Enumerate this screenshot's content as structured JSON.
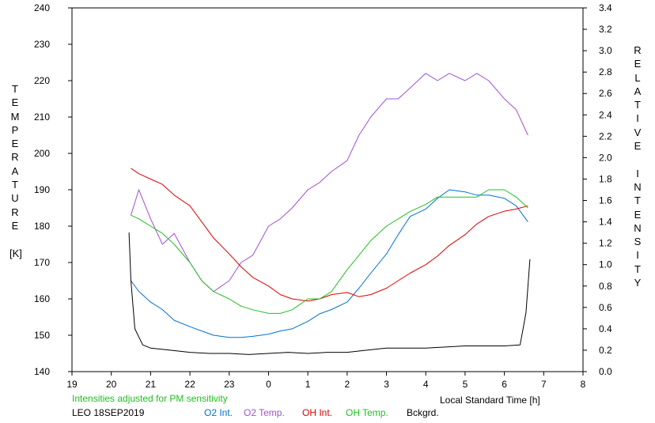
{
  "chart_data": {
    "type": "line",
    "title": "",
    "xlabel": "Local Standard Time [h]",
    "ylabel_left": [
      "T",
      "E",
      "M",
      "P",
      "E",
      "R",
      "A",
      "T",
      "U",
      "R",
      "E",
      "",
      "[K]"
    ],
    "ylabel_right": [
      "R",
      "E",
      "L",
      "A",
      "T",
      "I",
      "V",
      "E",
      "",
      "I",
      "N",
      "T",
      "E",
      "N",
      "S",
      "I",
      "T",
      "Y"
    ],
    "x_ticks": [
      "19",
      "20",
      "21",
      "22",
      "23",
      "0",
      "1",
      "2",
      "3",
      "4",
      "5",
      "6",
      "7",
      "8"
    ],
    "x_range_hours_after_19": [
      0,
      13
    ],
    "y_left_ticks": [
      "140",
      "150",
      "160",
      "170",
      "180",
      "190",
      "200",
      "210",
      "220",
      "230",
      "240"
    ],
    "y_left_range": [
      140,
      240
    ],
    "y_right_ticks": [
      "0.0",
      "0.2",
      "0.4",
      "0.6",
      "0.8",
      "1.0",
      "1.2",
      "1.4",
      "1.6",
      "1.8",
      "2.0",
      "2.2",
      "2.4",
      "2.6",
      "2.8",
      "3.0",
      "3.2",
      "3.4"
    ],
    "y_right_range": [
      0.0,
      3.4
    ],
    "note": "Intensities adjusted for PM sensitivity",
    "station": "LEO 18SEP2019",
    "series": [
      {
        "name": "O2 Int.",
        "axis": "right",
        "color": "#0070d0",
        "x": [
          20.5,
          20.7,
          21.0,
          21.3,
          21.6,
          22.0,
          22.3,
          22.6,
          23.0,
          23.3,
          23.6,
          24.0,
          24.3,
          24.6,
          25.0,
          25.3,
          25.6,
          26.0,
          26.3,
          26.6,
          27.0,
          27.3,
          27.6,
          28.0,
          28.3,
          28.6,
          29.0,
          29.3,
          29.6,
          30.0,
          30.3,
          30.6
        ],
        "y": [
          0.85,
          0.75,
          0.65,
          0.58,
          0.48,
          0.42,
          0.38,
          0.34,
          0.32,
          0.32,
          0.33,
          0.35,
          0.38,
          0.4,
          0.47,
          0.54,
          0.58,
          0.65,
          0.78,
          0.92,
          1.1,
          1.28,
          1.45,
          1.52,
          1.62,
          1.7,
          1.68,
          1.65,
          1.65,
          1.62,
          1.55,
          1.4
        ]
      },
      {
        "name": "O2 Temp.",
        "axis": "left",
        "color": "#a050d0",
        "x": [
          20.5,
          20.7,
          21.0,
          21.3,
          21.6,
          22.0,
          22.3,
          22.6,
          23.0,
          23.3,
          23.6,
          24.0,
          24.3,
          24.6,
          25.0,
          25.3,
          25.6,
          26.0,
          26.3,
          26.6,
          27.0,
          27.3,
          27.6,
          28.0,
          28.3,
          28.6,
          29.0,
          29.3,
          29.6,
          30.0,
          30.3,
          30.6
        ],
        "y": [
          183,
          190,
          182,
          175,
          178,
          170,
          165,
          162,
          165,
          170,
          172,
          180,
          182,
          185,
          190,
          192,
          195,
          198,
          205,
          210,
          215,
          215,
          218,
          222,
          220,
          222,
          220,
          222,
          220,
          215,
          212,
          205
        ]
      },
      {
        "name": "OH Int.",
        "axis": "right",
        "color": "#e00000",
        "x": [
          20.5,
          20.7,
          21.0,
          21.3,
          21.6,
          22.0,
          22.3,
          22.6,
          23.0,
          23.3,
          23.6,
          24.0,
          24.3,
          24.6,
          25.0,
          25.3,
          25.6,
          26.0,
          26.3,
          26.6,
          27.0,
          27.3,
          27.6,
          28.0,
          28.3,
          28.6,
          29.0,
          29.3,
          29.6,
          30.0,
          30.3,
          30.6
        ],
        "y": [
          1.9,
          1.85,
          1.8,
          1.75,
          1.65,
          1.55,
          1.4,
          1.25,
          1.1,
          0.98,
          0.88,
          0.8,
          0.72,
          0.68,
          0.66,
          0.68,
          0.72,
          0.74,
          0.7,
          0.72,
          0.78,
          0.85,
          0.92,
          1.0,
          1.08,
          1.18,
          1.28,
          1.38,
          1.45,
          1.5,
          1.52,
          1.55
        ]
      },
      {
        "name": "OH Temp.",
        "axis": "left",
        "color": "#20c020",
        "x": [
          20.5,
          20.7,
          21.0,
          21.3,
          21.6,
          22.0,
          22.3,
          22.6,
          23.0,
          23.3,
          23.6,
          24.0,
          24.3,
          24.6,
          25.0,
          25.3,
          25.6,
          26.0,
          26.3,
          26.6,
          27.0,
          27.3,
          27.6,
          28.0,
          28.3,
          28.6,
          29.0,
          29.3,
          29.6,
          30.0,
          30.3,
          30.6
        ],
        "y": [
          183,
          182,
          180,
          178,
          175,
          170,
          165,
          162,
          160,
          158,
          157,
          156,
          156,
          157,
          160,
          160,
          162,
          168,
          172,
          176,
          180,
          182,
          184,
          186,
          188,
          188,
          188,
          188,
          190,
          190,
          188,
          185
        ]
      },
      {
        "name": "Bckgrd.",
        "axis": "right",
        "color": "#000000",
        "x": [
          20.45,
          20.5,
          20.6,
          20.8,
          21.0,
          21.5,
          22.0,
          22.5,
          23.0,
          23.5,
          24.0,
          24.5,
          25.0,
          25.5,
          26.0,
          26.5,
          27.0,
          27.5,
          28.0,
          28.5,
          29.0,
          29.5,
          30.0,
          30.4,
          30.55,
          30.65
        ],
        "y": [
          1.3,
          0.85,
          0.4,
          0.25,
          0.22,
          0.2,
          0.18,
          0.17,
          0.17,
          0.16,
          0.17,
          0.18,
          0.17,
          0.18,
          0.18,
          0.2,
          0.22,
          0.22,
          0.22,
          0.23,
          0.24,
          0.24,
          0.24,
          0.25,
          0.55,
          1.05
        ]
      }
    ]
  }
}
